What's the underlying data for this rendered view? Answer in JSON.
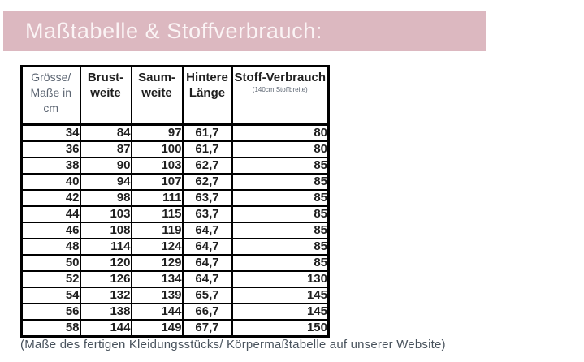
{
  "banner": {
    "title": "Maßtabelle & Stoffverbrauch:",
    "bg_color": "#dcb8c0",
    "text_color": "#fbf4f5"
  },
  "table": {
    "columns": [
      {
        "lines": [
          "Grösse/",
          "Maße in",
          "cm"
        ]
      },
      {
        "lines": [
          "Brust-",
          "weite"
        ]
      },
      {
        "lines": [
          "Saum-",
          "weite"
        ]
      },
      {
        "lines": [
          "Hintere",
          "Länge"
        ]
      },
      {
        "lines": [
          "Stoff-Verbrauch"
        ],
        "subtitle": "(140cm Stoffbreite)"
      }
    ],
    "rows": [
      [
        "34",
        "84",
        "97",
        "61,7",
        "80"
      ],
      [
        "36",
        "87",
        "100",
        "61,7",
        "80"
      ],
      [
        "38",
        "90",
        "103",
        "62,7",
        "85"
      ],
      [
        "40",
        "94",
        "107",
        "62,7",
        "85"
      ],
      [
        "42",
        "98",
        "111",
        "63,7",
        "85"
      ],
      [
        "44",
        "103",
        "115",
        "63,7",
        "85"
      ],
      [
        "46",
        "108",
        "119",
        "64,7",
        "85"
      ],
      [
        "48",
        "114",
        "124",
        "64,7",
        "85"
      ],
      [
        "50",
        "120",
        "129",
        "64,7",
        "85"
      ],
      [
        "52",
        "126",
        "134",
        "64,7",
        "130"
      ],
      [
        "54",
        "132",
        "139",
        "65,7",
        "145"
      ],
      [
        "56",
        "138",
        "144",
        "66,7",
        "145"
      ],
      [
        "58",
        "144",
        "149",
        "67,7",
        "150"
      ]
    ]
  },
  "footnote": "(Maße des fertigen Kleidungsstücks/ Körpermaßtabelle auf unserer Website)"
}
